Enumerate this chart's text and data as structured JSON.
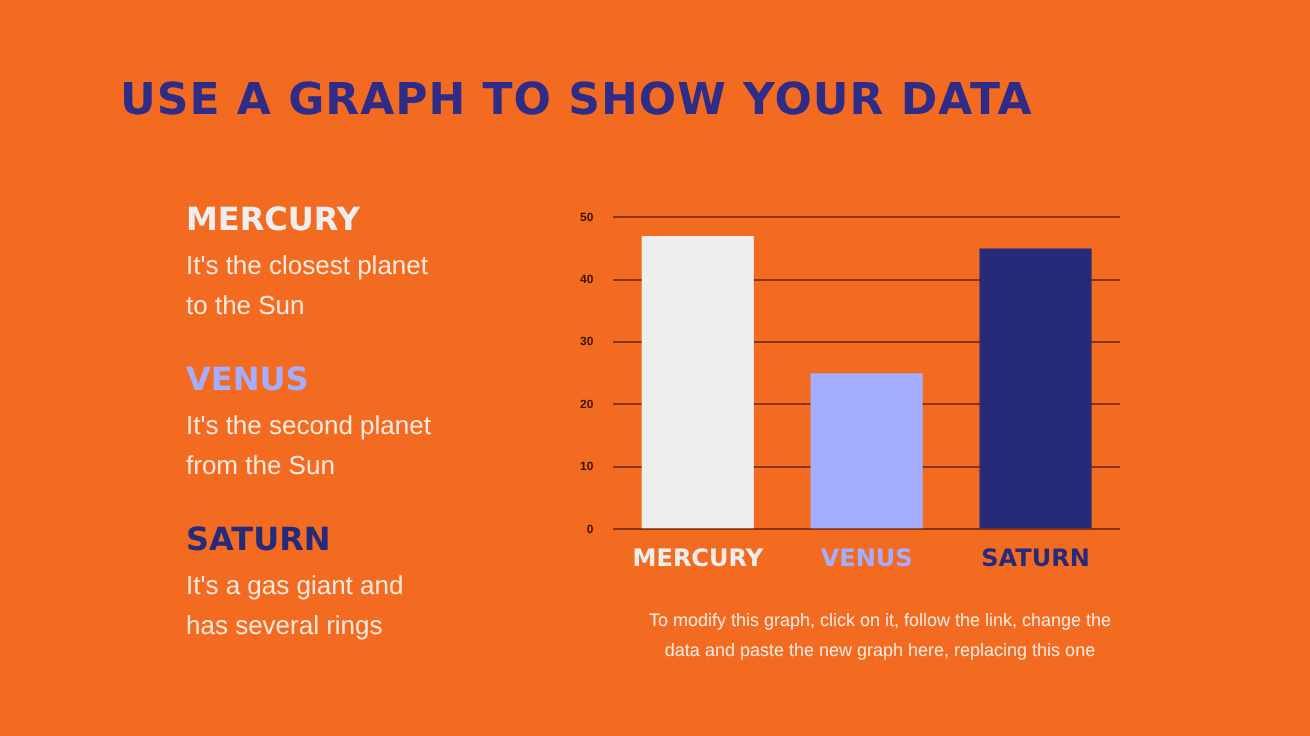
{
  "chart_data": {
    "type": "bar",
    "title": "USE A GRAPH TO SHOW YOUR DATA",
    "categories": [
      "MERCURY",
      "VENUS",
      "SATURN"
    ],
    "values": [
      47,
      25,
      45
    ],
    "colors": [
      "#eeeeee",
      "#a4adff",
      "#262a7a"
    ],
    "ylim": [
      0,
      50
    ],
    "yticks": [
      0,
      10,
      20,
      30,
      40,
      50
    ],
    "grid": "y",
    "legend": false,
    "annotations": [
      "MERCURY",
      "It's the closest planet to the Sun",
      "VENUS",
      "It's the second planet from the Sun",
      "SATURN",
      "It's a gas giant and has several rings",
      "To modify this graph, click on it, follow the link, change the data and paste the new graph here, replacing this one"
    ]
  }
}
